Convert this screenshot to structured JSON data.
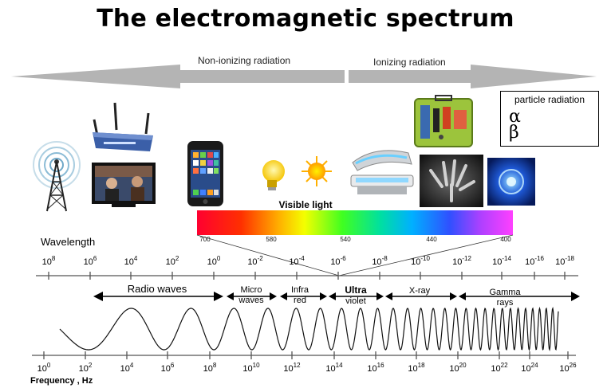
{
  "title": "The electromagnetic spectrum",
  "radiation": {
    "non_ionizing": "Non-ionizing radiation",
    "ionizing": "Ionizing radiation"
  },
  "particle_box": {
    "title": "particle radiation",
    "alpha_symbol": "α",
    "beta_symbol": "β"
  },
  "visible": {
    "label": "Visible light",
    "scale": [
      "700",
      "580",
      "540",
      "440",
      "400"
    ]
  },
  "wavelength": {
    "label": "Wavelength",
    "ticks": [
      {
        "base": "10",
        "exp": "8"
      },
      {
        "base": "10",
        "exp": "6"
      },
      {
        "base": "10",
        "exp": "4"
      },
      {
        "base": "10",
        "exp": "2"
      },
      {
        "base": "10",
        "exp": "0"
      },
      {
        "base": "10",
        "exp": "-2"
      },
      {
        "base": "10",
        "exp": "-4"
      },
      {
        "base": "10",
        "exp": "-6"
      },
      {
        "base": "10",
        "exp": "-8"
      },
      {
        "base": "10",
        "exp": "-10"
      },
      {
        "base": "10",
        "exp": "-12"
      },
      {
        "base": "10",
        "exp": "-14"
      },
      {
        "base": "10",
        "exp": "-16"
      },
      {
        "base": "10",
        "exp": "-18"
      }
    ]
  },
  "bands": {
    "radio": "Radio waves",
    "micro_1": "Micro",
    "micro_2": "waves",
    "infra_1": "Infra",
    "infra_2": "red",
    "ultra_1": "Ultra",
    "ultra_2": "violet",
    "xray": "X-ray",
    "gamma_1": "Gamma",
    "gamma_2": "rays"
  },
  "frequency": {
    "label": "Frequency  , Hz",
    "ticks": [
      {
        "base": "10",
        "exp": "0"
      },
      {
        "base": "10",
        "exp": "2"
      },
      {
        "base": "10",
        "exp": "4"
      },
      {
        "base": "10",
        "exp": "6"
      },
      {
        "base": "10",
        "exp": "8"
      },
      {
        "base": "10",
        "exp": "10"
      },
      {
        "base": "10",
        "exp": "12"
      },
      {
        "base": "10",
        "exp": "14"
      },
      {
        "base": "10",
        "exp": "16"
      },
      {
        "base": "10",
        "exp": "18"
      },
      {
        "base": "10",
        "exp": "20"
      },
      {
        "base": "10",
        "exp": "22"
      },
      {
        "base": "10",
        "exp": "24"
      },
      {
        "base": "10",
        "exp": "26"
      }
    ]
  },
  "colors": {
    "arrow": "#b4b4b4",
    "alpha_particle": "#7a3fb0",
    "beta_particle": "#4cd24c"
  }
}
